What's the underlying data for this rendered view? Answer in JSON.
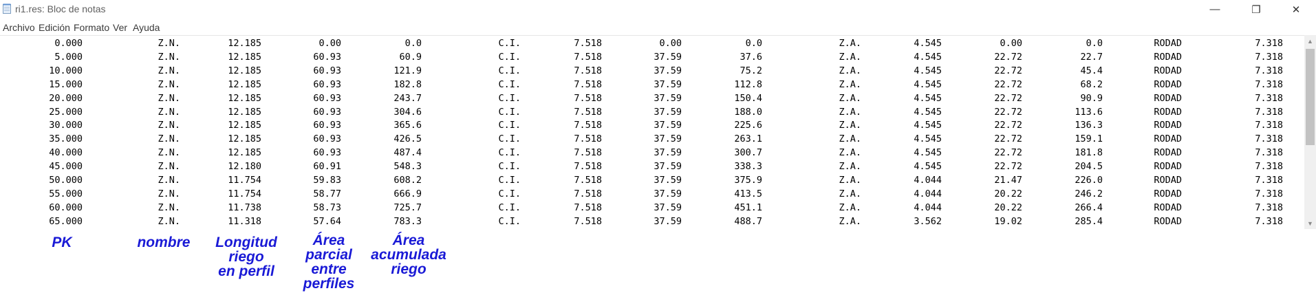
{
  "window": {
    "title": "ri1.res: Bloc de notas",
    "minimize_glyph": "—",
    "maximize_glyph": "❐",
    "close_glyph": "✕",
    "icon": "notepad-icon"
  },
  "menu": {
    "items": [
      "Archivo",
      "Edición",
      "Formato",
      "Ver",
      "Ayuda"
    ]
  },
  "rows": [
    [
      "0.000",
      "Z.N.",
      "12.185",
      "0.00",
      "0.0",
      "C.I.",
      "7.518",
      "0.00",
      "0.0",
      "Z.A.",
      "4.545",
      "0.00",
      "0.0",
      "RODAD",
      "7.318"
    ],
    [
      "5.000",
      "Z.N.",
      "12.185",
      "60.93",
      "60.9",
      "C.I.",
      "7.518",
      "37.59",
      "37.6",
      "Z.A.",
      "4.545",
      "22.72",
      "22.7",
      "RODAD",
      "7.318"
    ],
    [
      "10.000",
      "Z.N.",
      "12.185",
      "60.93",
      "121.9",
      "C.I.",
      "7.518",
      "37.59",
      "75.2",
      "Z.A.",
      "4.545",
      "22.72",
      "45.4",
      "RODAD",
      "7.318"
    ],
    [
      "15.000",
      "Z.N.",
      "12.185",
      "60.93",
      "182.8",
      "C.I.",
      "7.518",
      "37.59",
      "112.8",
      "Z.A.",
      "4.545",
      "22.72",
      "68.2",
      "RODAD",
      "7.318"
    ],
    [
      "20.000",
      "Z.N.",
      "12.185",
      "60.93",
      "243.7",
      "C.I.",
      "7.518",
      "37.59",
      "150.4",
      "Z.A.",
      "4.545",
      "22.72",
      "90.9",
      "RODAD",
      "7.318"
    ],
    [
      "25.000",
      "Z.N.",
      "12.185",
      "60.93",
      "304.6",
      "C.I.",
      "7.518",
      "37.59",
      "188.0",
      "Z.A.",
      "4.545",
      "22.72",
      "113.6",
      "RODAD",
      "7.318"
    ],
    [
      "30.000",
      "Z.N.",
      "12.185",
      "60.93",
      "365.6",
      "C.I.",
      "7.518",
      "37.59",
      "225.6",
      "Z.A.",
      "4.545",
      "22.72",
      "136.3",
      "RODAD",
      "7.318"
    ],
    [
      "35.000",
      "Z.N.",
      "12.185",
      "60.93",
      "426.5",
      "C.I.",
      "7.518",
      "37.59",
      "263.1",
      "Z.A.",
      "4.545",
      "22.72",
      "159.1",
      "RODAD",
      "7.318"
    ],
    [
      "40.000",
      "Z.N.",
      "12.185",
      "60.93",
      "487.4",
      "C.I.",
      "7.518",
      "37.59",
      "300.7",
      "Z.A.",
      "4.545",
      "22.72",
      "181.8",
      "RODAD",
      "7.318"
    ],
    [
      "45.000",
      "Z.N.",
      "12.180",
      "60.91",
      "548.3",
      "C.I.",
      "7.518",
      "37.59",
      "338.3",
      "Z.A.",
      "4.545",
      "22.72",
      "204.5",
      "RODAD",
      "7.318"
    ],
    [
      "50.000",
      "Z.N.",
      "11.754",
      "59.83",
      "608.2",
      "C.I.",
      "7.518",
      "37.59",
      "375.9",
      "Z.A.",
      "4.044",
      "21.47",
      "226.0",
      "RODAD",
      "7.318"
    ],
    [
      "55.000",
      "Z.N.",
      "11.754",
      "58.77",
      "666.9",
      "C.I.",
      "7.518",
      "37.59",
      "413.5",
      "Z.A.",
      "4.044",
      "20.22",
      "246.2",
      "RODAD",
      "7.318"
    ],
    [
      "60.000",
      "Z.N.",
      "11.738",
      "58.73",
      "725.7",
      "C.I.",
      "7.518",
      "37.59",
      "451.1",
      "Z.A.",
      "4.044",
      "20.22",
      "266.4",
      "RODAD",
      "7.318"
    ],
    [
      "65.000",
      "Z.N.",
      "11.318",
      "57.64",
      "783.3",
      "C.I.",
      "7.518",
      "37.59",
      "488.7",
      "Z.A.",
      "3.562",
      "19.02",
      "285.4",
      "RODAD",
      "7.318"
    ]
  ],
  "annotations": [
    {
      "lines": [
        "PK"
      ]
    },
    {
      "lines": [
        "nombre"
      ]
    },
    {
      "lines": [
        "Longitud",
        "riego",
        "en perfil"
      ]
    },
    {
      "lines": [
        "Área",
        "parcial",
        "entre",
        "perfiles"
      ]
    },
    {
      "lines": [
        "Área",
        "acumulada",
        "riego"
      ]
    }
  ],
  "colors": {
    "annotation": "#1a1ad6",
    "text": "#000000",
    "background": "#ffffff"
  }
}
